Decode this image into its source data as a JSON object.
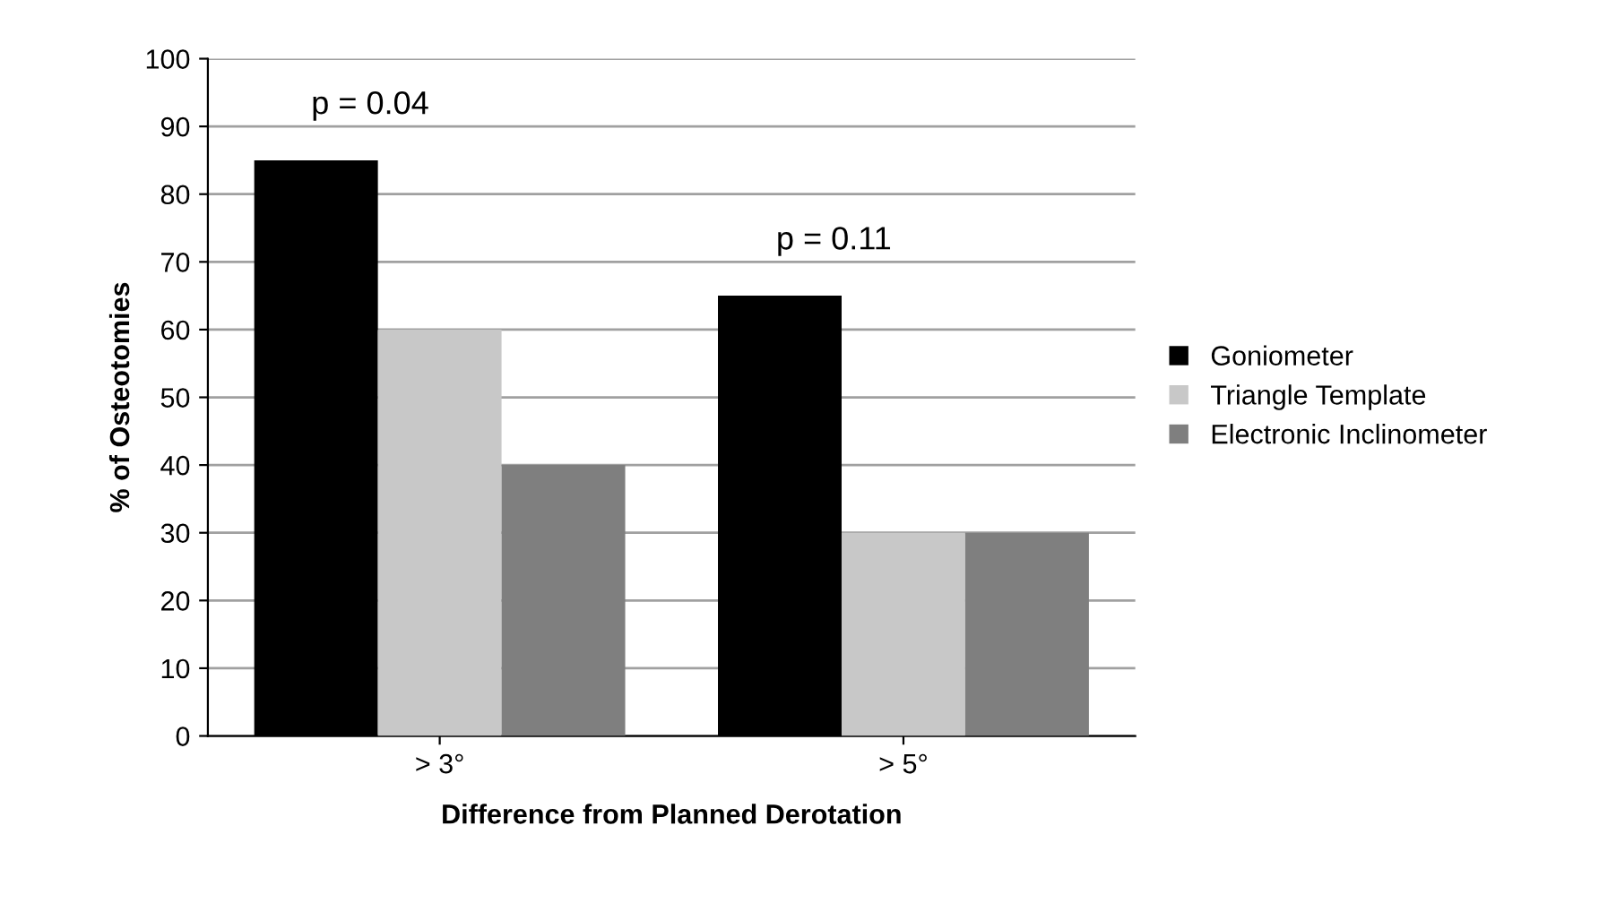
{
  "chart_data": {
    "type": "bar",
    "xlabel": "Difference from Planned Derotation",
    "ylabel": "% of Osteotomies",
    "categories": [
      "> 3°",
      "> 5°"
    ],
    "series": [
      {
        "name": "Goniometer",
        "color": "#000000",
        "values": [
          85,
          65
        ]
      },
      {
        "name": "Triangle Template",
        "color": "#c8c8c8",
        "values": [
          60,
          30
        ]
      },
      {
        "name": "Electronic Inclinometer",
        "color": "#7f7f7f",
        "values": [
          40,
          30
        ]
      }
    ],
    "ylim": [
      0,
      100
    ],
    "yticks": [
      0,
      10,
      20,
      30,
      40,
      50,
      60,
      70,
      80,
      90,
      100
    ],
    "grid": "y",
    "legend": "right",
    "annotations": [
      "p = 0.04",
      "p = 0.11"
    ]
  }
}
